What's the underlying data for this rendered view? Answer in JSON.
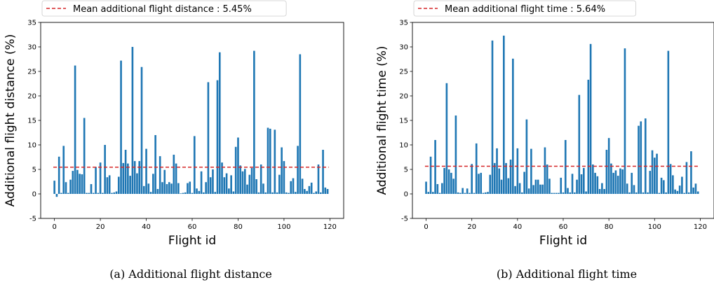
{
  "chart_data": [
    {
      "type": "bar",
      "title": "",
      "xlabel": "Flight id",
      "ylabel": "Additional flight distance (%)",
      "caption": "(a) Additional flight distance",
      "xlim": [
        -6,
        126
      ],
      "ylim": [
        -5,
        35
      ],
      "x_ticks": [
        0,
        20,
        40,
        60,
        80,
        100,
        120
      ],
      "y_ticks": [
        -5,
        0,
        5,
        10,
        15,
        20,
        25,
        30,
        35
      ],
      "grid": false,
      "legend_position": "top-left, outside above the axes",
      "bar_color": "#1f77b4",
      "mean_line_color": "#d62728",
      "mean": 5.45,
      "legend_label": "Mean additional flight distance : 5.45%",
      "values": [
        2.7,
        -0.6,
        7.6,
        0.2,
        9.8,
        2.4,
        0.2,
        2.9,
        4.7,
        26.2,
        4.9,
        4.1,
        4.0,
        15.5,
        0.2,
        0.2,
        2.0,
        0.2,
        5.5,
        0.2,
        6.4,
        0.2,
        10.0,
        3.4,
        3.8,
        0.2,
        0.3,
        0.5,
        3.5,
        27.2,
        6.3,
        9.0,
        6.2,
        3.7,
        30.0,
        6.7,
        4.2,
        6.7,
        25.9,
        1.6,
        9.2,
        2.1,
        0.4,
        4.1,
        12.0,
        1.0,
        7.7,
        2.4,
        4.9,
        2.0,
        2.4,
        2.1,
        8.0,
        6.2,
        2.2,
        0.1,
        0.2,
        0.3,
        2.2,
        2.5,
        0.2,
        11.8,
        1.1,
        0.6,
        4.6,
        0.3,
        2.4,
        22.8,
        3.4,
        5.0,
        0.4,
        23.2,
        28.9,
        6.4,
        3.4,
        4.2,
        1.1,
        3.8,
        0.5,
        9.6,
        11.5,
        5.8,
        4.6,
        5.1,
        1.9,
        3.9,
        5.3,
        29.2,
        3.0,
        0.3,
        6.0,
        2.1,
        0.3,
        13.5,
        13.3,
        0.3,
        13.1,
        0.3,
        3.9,
        9.5,
        6.7,
        0.3,
        0.2,
        2.6,
        3.2,
        0.4,
        9.8,
        28.5,
        3.1,
        1.0,
        0.6,
        1.6,
        2.3,
        0.2,
        0.5,
        6.0,
        0.3,
        9.0,
        1.3,
        1.0
      ]
    },
    {
      "type": "bar",
      "title": "",
      "xlabel": "Flight id",
      "ylabel": "Additional flight time (%)",
      "caption": "(b) Additional flight time",
      "xlim": [
        -6,
        126
      ],
      "ylim": [
        -5,
        35
      ],
      "x_ticks": [
        0,
        20,
        40,
        60,
        80,
        100,
        120
      ],
      "y_ticks": [
        -5,
        0,
        5,
        10,
        15,
        20,
        25,
        30,
        35
      ],
      "grid": false,
      "legend_position": "top-left, outside above the axes",
      "bar_color": "#1f77b4",
      "mean_line_color": "#d62728",
      "mean": 5.64,
      "legend_label": "Mean additional flight time : 5.64%",
      "values": [
        2.5,
        0.4,
        7.6,
        0.4,
        11.0,
        2.0,
        0.2,
        2.2,
        5.3,
        22.6,
        5.0,
        4.3,
        3.1,
        16.0,
        0.3,
        0.2,
        1.2,
        0.2,
        1.1,
        0.2,
        6.1,
        0.2,
        10.3,
        4.1,
        4.3,
        0.2,
        0.3,
        0.4,
        3.9,
        31.3,
        6.3,
        9.3,
        5.2,
        2.9,
        32.3,
        6.3,
        3.2,
        7.0,
        27.6,
        1.6,
        9.3,
        2.2,
        0.3,
        4.5,
        15.2,
        1.1,
        9.2,
        1.8,
        2.9,
        2.9,
        1.9,
        1.9,
        9.5,
        6.0,
        3.1,
        0.2,
        0.2,
        0.2,
        0.2,
        3.3,
        0.3,
        11.0,
        1.2,
        0.3,
        4.1,
        0.3,
        2.9,
        20.2,
        4.0,
        5.3,
        0.5,
        23.3,
        30.6,
        6.0,
        4.3,
        3.6,
        1.0,
        2.2,
        1.0,
        9.0,
        11.4,
        6.2,
        4.3,
        4.8,
        3.7,
        5.2,
        5.0,
        29.7,
        2.1,
        0.3,
        4.3,
        1.8,
        0.3,
        13.9,
        14.8,
        0.3,
        15.4,
        0.3,
        4.7,
        8.9,
        7.4,
        8.2,
        0.2,
        3.3,
        2.8,
        0.3,
        29.2,
        6.1,
        3.8,
        0.9,
        0.6,
        1.7,
        3.5,
        0.2,
        6.5,
        0.3,
        8.7,
        1.3,
        2.1,
        0.5
      ]
    }
  ]
}
